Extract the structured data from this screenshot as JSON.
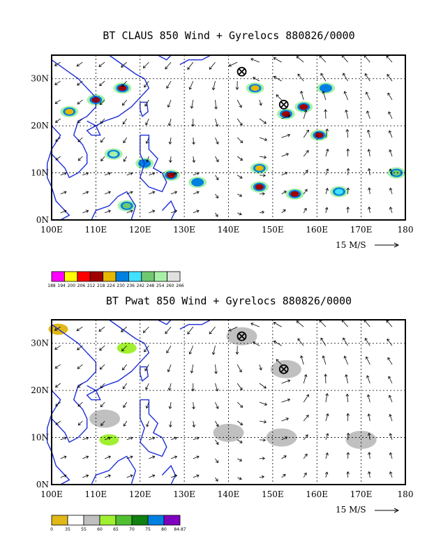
{
  "chart_data": [
    {
      "type": "heatmap",
      "title": "BT CLAUS 850 Wind + Gyrelocs 880826/0000",
      "xlim": [
        100,
        180
      ],
      "ylim": [
        0,
        35
      ],
      "x_ticks": [
        "100E",
        "110E",
        "120E",
        "130E",
        "140E",
        "150E",
        "160E",
        "170E",
        "180"
      ],
      "y_ticks": [
        "0N",
        "10N",
        "20N",
        "30N"
      ],
      "wind_ref_label": "15 M/S",
      "gyre_locations": [
        {
          "lon": 143,
          "lat": 31.5
        },
        {
          "lon": 152.5,
          "lat": 24.5
        }
      ],
      "colorbar": {
        "labels": [
          "188",
          "194",
          "200",
          "206",
          "212",
          "218",
          "224",
          "230",
          "236",
          "242",
          "248",
          "254",
          "260",
          "266"
        ],
        "colors": [
          "#ff00ff",
          "#ffff00",
          "#ff0000",
          "#a00000",
          "#e8b800",
          "#0080e0",
          "#40e0ff",
          "#70c870",
          "#a8f0a8",
          "#e0e0e0"
        ]
      },
      "features": [
        {
          "lon": 116,
          "lat": 28,
          "level": 3
        },
        {
          "lon": 110,
          "lat": 25.5,
          "level": 3
        },
        {
          "lon": 104,
          "lat": 23,
          "level": 4
        },
        {
          "lon": 127,
          "lat": 9.5,
          "level": 3
        },
        {
          "lon": 121,
          "lat": 12,
          "level": 5
        },
        {
          "lon": 147,
          "lat": 7,
          "level": 3
        },
        {
          "lon": 147,
          "lat": 11,
          "level": 4
        },
        {
          "lon": 153,
          "lat": 22.5,
          "level": 3
        },
        {
          "lon": 157,
          "lat": 24,
          "level": 3
        },
        {
          "lon": 160.5,
          "lat": 18,
          "level": 3
        },
        {
          "lon": 155,
          "lat": 5.5,
          "level": 3
        },
        {
          "lon": 162,
          "lat": 28,
          "level": 5
        },
        {
          "lon": 165,
          "lat": 6,
          "level": 6
        },
        {
          "lon": 146,
          "lat": 28,
          "level": 4
        },
        {
          "lon": 133,
          "lat": 8,
          "level": 5
        },
        {
          "lon": 117,
          "lat": 3,
          "level": 7
        },
        {
          "lon": 178,
          "lat": 10,
          "level": 7
        },
        {
          "lon": 114,
          "lat": 14,
          "level": 8
        }
      ]
    },
    {
      "type": "heatmap",
      "title": "BT Pwat 850 Wind + Gyrelocs 880826/0000",
      "xlim": [
        100,
        180
      ],
      "ylim": [
        0,
        35
      ],
      "x_ticks": [
        "100E",
        "110E",
        "120E",
        "130E",
        "140E",
        "150E",
        "160E",
        "170E",
        "180"
      ],
      "y_ticks": [
        "0N",
        "10N",
        "20N",
        "30N"
      ],
      "wind_ref_label": "15 M/S",
      "gyre_locations": [
        {
          "lon": 143,
          "lat": 31.5
        },
        {
          "lon": 152.5,
          "lat": 24.5
        }
      ],
      "colorbar": {
        "labels": [
          "0",
          "35",
          "55",
          "60",
          "65",
          "70",
          "75",
          "80",
          "84.87"
        ],
        "colors": [
          "#e0b818",
          "#ffffff",
          "#c0c0c0",
          "#a0f030",
          "#50c030",
          "#108010",
          "#0080e0",
          "#8000c0"
        ]
      },
      "features": [
        {
          "lon": 101.5,
          "lat": 33,
          "level": 0
        },
        {
          "lon": 117,
          "lat": 29,
          "level": 3
        },
        {
          "lon": 113,
          "lat": 9.5,
          "level": 3
        },
        {
          "lon": 143,
          "lat": 31.5,
          "level": 2
        },
        {
          "lon": 153,
          "lat": 24.5,
          "level": 2
        },
        {
          "lon": 112,
          "lat": 14,
          "level": 2
        },
        {
          "lon": 140,
          "lat": 11,
          "level": 2
        },
        {
          "lon": 152,
          "lat": 10,
          "level": 2
        },
        {
          "lon": 170,
          "lat": 9.5,
          "level": 2
        }
      ]
    }
  ]
}
